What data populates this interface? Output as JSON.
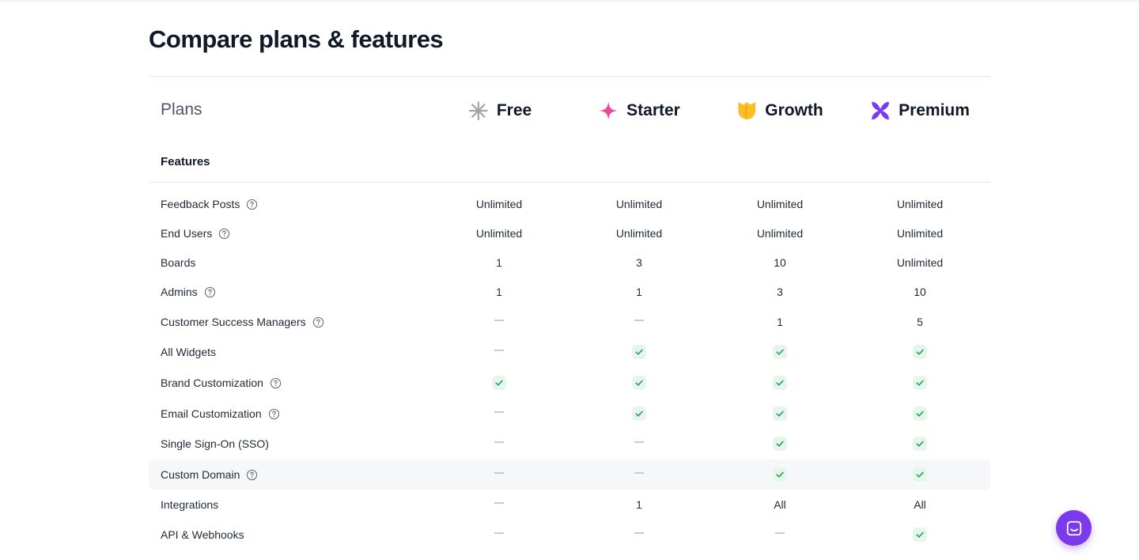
{
  "page": {
    "title": "Compare plans & features"
  },
  "plans_header": {
    "label": "Plans",
    "plans": [
      {
        "name": "Free",
        "icon": "asterisk-icon",
        "color": "#9ca3af"
      },
      {
        "name": "Starter",
        "icon": "sparkle-icon",
        "color": "#ec4899"
      },
      {
        "name": "Growth",
        "icon": "tulip-icon",
        "color": "#fbbf24"
      },
      {
        "name": "Premium",
        "icon": "butterfly-icon",
        "color": "#7c3aed"
      }
    ]
  },
  "features_label": "Features",
  "features": [
    {
      "name": "Feedback Posts",
      "help": true,
      "values": [
        "Unlimited",
        "Unlimited",
        "Unlimited",
        "Unlimited"
      ]
    },
    {
      "name": "End Users",
      "help": true,
      "values": [
        "Unlimited",
        "Unlimited",
        "Unlimited",
        "Unlimited"
      ]
    },
    {
      "name": "Boards",
      "help": false,
      "values": [
        "1",
        "3",
        "10",
        "Unlimited"
      ]
    },
    {
      "name": "Admins",
      "help": true,
      "values": [
        "1",
        "1",
        "3",
        "10"
      ]
    },
    {
      "name": "Customer Success Managers",
      "help": true,
      "values": [
        "dash",
        "dash",
        "1",
        "5"
      ]
    },
    {
      "name": "All Widgets",
      "help": false,
      "values": [
        "dash",
        "check",
        "check",
        "check"
      ]
    },
    {
      "name": "Brand Customization",
      "help": true,
      "values": [
        "check",
        "check",
        "check",
        "check"
      ]
    },
    {
      "name": "Email Customization",
      "help": true,
      "values": [
        "dash",
        "check",
        "check",
        "check"
      ]
    },
    {
      "name": "Single Sign-On (SSO)",
      "help": false,
      "values": [
        "dash",
        "dash",
        "check",
        "check"
      ]
    },
    {
      "name": "Custom Domain",
      "help": true,
      "highlighted": true,
      "values": [
        "dash",
        "dash",
        "check",
        "check"
      ]
    },
    {
      "name": "Integrations",
      "help": false,
      "values": [
        "dash",
        "1",
        "All",
        "All"
      ]
    },
    {
      "name": "API & Webhooks",
      "help": false,
      "values": [
        "dash",
        "dash",
        "dash",
        "check"
      ]
    }
  ],
  "colors": {
    "check_bg": "#e6f6ec",
    "check_mark": "#22a35a",
    "chat_button": "#7c3aed"
  },
  "chat_button": {
    "icon": "chat-icon"
  }
}
